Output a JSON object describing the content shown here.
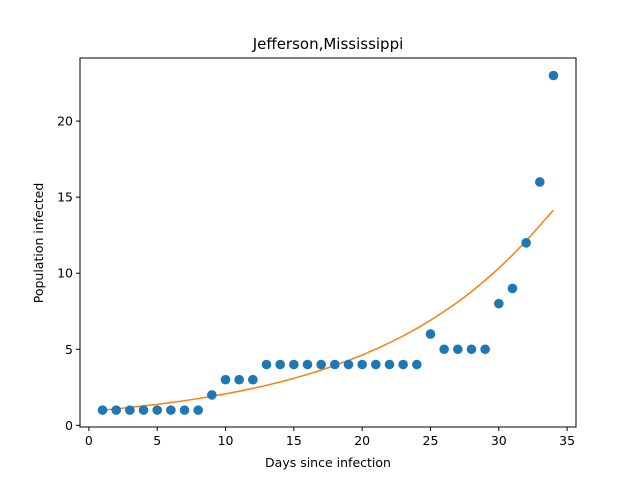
{
  "chart_data": {
    "type": "scatter",
    "title": "Jefferson,Mississippi",
    "xlabel": "Days since infection",
    "ylabel": "Population infected",
    "xlim": [
      -0.65,
      35.65
    ],
    "ylim": [
      -0.11,
      24.15
    ],
    "x_ticks": [
      0,
      5,
      10,
      15,
      20,
      25,
      30,
      35
    ],
    "y_ticks": [
      0,
      5,
      10,
      15,
      20
    ],
    "grid": false,
    "legend": "none",
    "series": [
      {
        "kind": "scatter",
        "color": "#1f77b4",
        "x": [
          1,
          2,
          3,
          4,
          5,
          6,
          7,
          8,
          9,
          10,
          11,
          12,
          13,
          14,
          15,
          16,
          17,
          18,
          19,
          20,
          21,
          22,
          23,
          24,
          25,
          26,
          27,
          28,
          29,
          30,
          31,
          32,
          33,
          34
        ],
        "y": [
          1,
          1,
          1,
          1,
          1,
          1,
          1,
          1,
          2,
          3,
          3,
          3,
          4,
          4,
          4,
          4,
          4,
          4,
          4,
          4,
          4,
          4,
          4,
          4,
          6,
          5,
          5,
          5,
          5,
          8,
          9,
          12,
          16,
          23
        ]
      },
      {
        "kind": "line",
        "color": "#ff7f0e",
        "x": [
          1,
          2,
          3,
          4,
          5,
          6,
          7,
          8,
          9,
          10,
          11,
          12,
          13,
          14,
          15,
          16,
          17,
          18,
          19,
          20,
          21,
          22,
          23,
          24,
          25,
          26,
          27,
          28,
          29,
          30,
          31,
          32,
          33,
          34
        ],
        "y": [
          1.0,
          1.08,
          1.18,
          1.28,
          1.38,
          1.5,
          1.62,
          1.76,
          1.91,
          2.07,
          2.24,
          2.43,
          2.63,
          2.85,
          3.09,
          3.35,
          3.63,
          3.94,
          4.27,
          4.62,
          5.01,
          5.43,
          5.88,
          6.37,
          6.91,
          7.49,
          8.11,
          8.79,
          9.53,
          10.33,
          11.19,
          12.13,
          13.14,
          14.15
        ]
      }
    ]
  }
}
